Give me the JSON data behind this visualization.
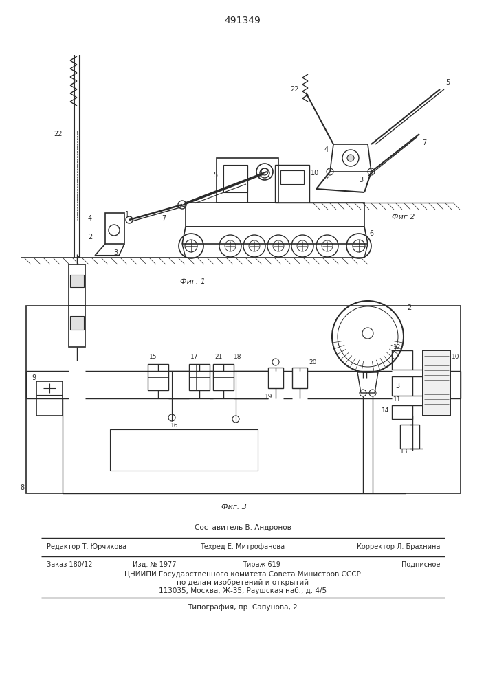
{
  "patent_number": "491349",
  "fig1_label": "Фиг. 1",
  "fig2_label": "Фиг 2",
  "fig3_label": "Фиг. 3",
  "bg_color": "#ffffff",
  "line_color": "#2a2a2a",
  "footer_line1_left": "Редактор Т. Юрчикова",
  "footer_line1_center": "Техред Е. Митрофанова",
  "footer_line1_right": "Корректор Л. Брахнина",
  "footer_line2_1": "Заказ 180/12",
  "footer_line2_2": "Изд. № 1977",
  "footer_line2_3": "Тираж 619",
  "footer_line2_4": "Подписное",
  "footer_line3": "ЦНИИПИ Государственного комитета Совета Министров СССР",
  "footer_line4": "по делам изобретений и открытий",
  "footer_line5": "113035, Москва, Ж-35, Раушская наб., д. 4/5",
  "footer_line6": "Типография, пр. Сапунова, 2",
  "composer": "Составитель В. Андронов"
}
